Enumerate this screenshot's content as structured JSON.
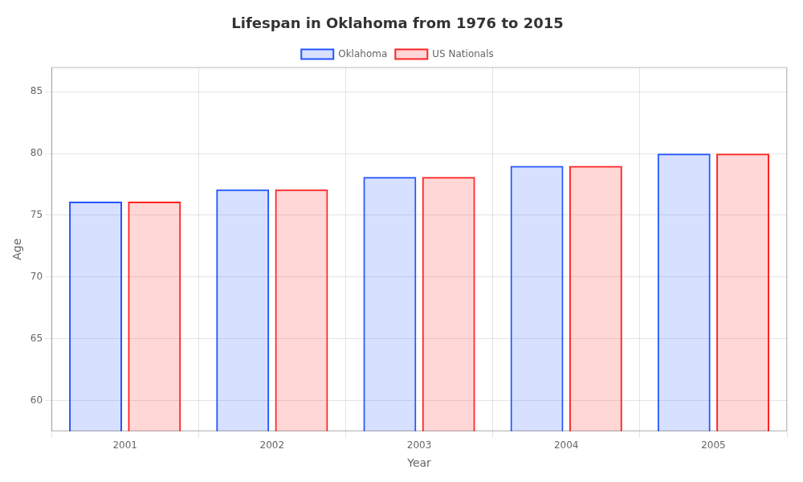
{
  "chart_data": {
    "type": "bar",
    "title": "Lifespan in Oklahoma from 1976 to 2015",
    "xlabel": "Year",
    "ylabel": "Age",
    "categories": [
      "2001",
      "2002",
      "2003",
      "2004",
      "2005"
    ],
    "series": [
      {
        "name": "Oklahoma",
        "color": "#2255ff",
        "values": [
          76.1,
          77.1,
          78.1,
          79.0,
          80.0
        ]
      },
      {
        "name": "US Nationals",
        "color": "#ff2222",
        "values": [
          76.1,
          77.1,
          78.1,
          79.0,
          80.0
        ]
      }
    ],
    "ylim": [
      57.5,
      87
    ],
    "yticks": [
      60,
      65,
      70,
      75,
      80,
      85
    ],
    "grid": true,
    "legend": "top"
  }
}
